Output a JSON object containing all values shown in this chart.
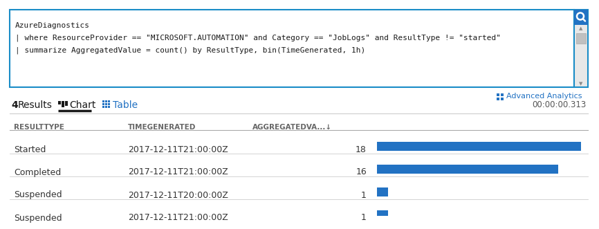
{
  "query_box": {
    "line1": "AzureDiagnostics",
    "line2": "| where ResourceProvider == \"MICROSOFT.AUTOMATION\" and Category == \"JobLogs\" and ResultType != \"started\"",
    "line3": "| summarize AggregatedValue = count() by ResultType, bin(TimeGenerated, 1h)"
  },
  "tabs": {
    "results_count": "4",
    "results_label": "Results",
    "chart_label": "Chart",
    "table_label": "Table",
    "time_label": "00:00:00.313",
    "advanced_label": "Advanced Analytics"
  },
  "table_headers": [
    "RESULTTYPE",
    "TIMEGENERATED",
    "AGGREGATEDVA...↓"
  ],
  "rows": [
    {
      "resulttype": "Started",
      "timegenerated": "2017-12-11T21:00:00Z",
      "value": 18
    },
    {
      "resulttype": "Completed",
      "timegenerated": "2017-12-11T21:00:00Z",
      "value": 16
    },
    {
      "resulttype": "Suspended",
      "timegenerated": "2017-12-11T20:00:00Z",
      "value": 1
    },
    {
      "resulttype": "Suspended",
      "timegenerated": "2017-12-11T21:00:00Z",
      "value": 1
    }
  ],
  "max_value": 18,
  "bar_color": "#2272C3",
  "query_border_color": "#1a8cc7",
  "query_bg_color": "#ffffff",
  "scrollbar_bg": "#e8e8e8",
  "scrollbar_thumb": "#c0c0c0",
  "search_icon_bg": "#2272C3",
  "tab_dark_color": "#1a1a1a",
  "tab_blue_color": "#2272C3",
  "header_text_color": "#666666",
  "row_text_color": "#333333",
  "divider_color": "#cccccc",
  "background_color": "#ffffff",
  "advanced_analytics_color": "#2272C3",
  "icon_grid_color": "#2272C3"
}
